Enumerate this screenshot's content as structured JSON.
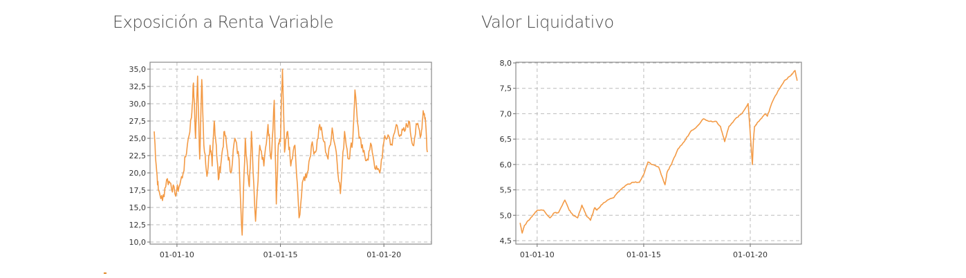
{
  "accent_color": "#f39a45",
  "chart_data": [
    {
      "type": "line",
      "title": "Exposición a Renta Variable",
      "xlabel": "",
      "ylabel": "",
      "ylim": [
        10.0,
        35.0
      ],
      "y_ticks": [
        "10,0",
        "12,5",
        "15,0",
        "17,5",
        "20,0",
        "22,5",
        "25,0",
        "27,5",
        "30,0",
        "32,5",
        "35,0"
      ],
      "x_ticks": [
        "01-01-10",
        "01-01-15",
        "01-01-20"
      ],
      "grid": true,
      "series": [
        {
          "color": "#f39a45",
          "x": [
            2008.9,
            2009.0,
            2009.1,
            2009.3,
            2009.5,
            2009.7,
            2009.9,
            2010.1,
            2010.3,
            2010.5,
            2010.7,
            2010.8,
            2010.9,
            2011.0,
            2011.1,
            2011.2,
            2011.3,
            2011.45,
            2011.6,
            2011.7,
            2011.8,
            2011.9,
            2012.0,
            2012.15,
            2012.3,
            2012.45,
            2012.6,
            2012.8,
            2013.0,
            2013.15,
            2013.3,
            2013.4,
            2013.5,
            2013.6,
            2013.8,
            2014.0,
            2014.2,
            2014.4,
            2014.55,
            2014.7,
            2014.8,
            2014.9,
            2015.0,
            2015.1,
            2015.2,
            2015.35,
            2015.5,
            2015.7,
            2015.9,
            2016.1,
            2016.3,
            2016.5,
            2016.7,
            2016.9,
            2017.1,
            2017.3,
            2017.5,
            2017.7,
            2017.9,
            2018.1,
            2018.3,
            2018.5,
            2018.6,
            2018.8,
            2019.0,
            2019.2,
            2019.4,
            2019.6,
            2019.8,
            2020.0,
            2020.2,
            2020.4,
            2020.6,
            2020.8,
            2021.0,
            2021.2,
            2021.4,
            2021.6,
            2021.8,
            2021.9,
            2022.0,
            2022.1
          ],
          "values": [
            26.0,
            21.0,
            17.5,
            16.0,
            19.0,
            18.5,
            17.0,
            18.0,
            20.0,
            24.0,
            28.0,
            33.0,
            25.0,
            34.0,
            22.0,
            33.5,
            24.0,
            19.5,
            24.0,
            21.0,
            27.5,
            24.0,
            19.0,
            22.0,
            26.0,
            23.0,
            20.0,
            25.0,
            22.0,
            11.0,
            25.0,
            21.0,
            18.0,
            26.0,
            13.0,
            24.0,
            21.0,
            27.0,
            22.0,
            30.5,
            15.5,
            24.0,
            24.5,
            35.0,
            23.0,
            26.0,
            21.0,
            24.0,
            13.5,
            19.0,
            20.0,
            24.0,
            23.0,
            27.0,
            24.5,
            22.0,
            26.5,
            23.0,
            17.0,
            26.0,
            22.0,
            25.0,
            32.0,
            25.0,
            23.0,
            22.0,
            24.0,
            20.5,
            20.0,
            24.5,
            25.5,
            24.0,
            27.0,
            25.5,
            26.0,
            27.5,
            24.0,
            27.0,
            25.5,
            29.0,
            28.0,
            23.0
          ]
        }
      ]
    },
    {
      "type": "line",
      "title": "Valor Liquidativo",
      "xlabel": "",
      "ylabel": "",
      "ylim": [
        4.5,
        8.0
      ],
      "y_ticks": [
        "4,5",
        "5,0",
        "5,5",
        "6,0",
        "6,5",
        "7,0",
        "7,5",
        "8,0"
      ],
      "x_ticks": [
        "01-01-10",
        "01-01-15",
        "01-01-20"
      ],
      "grid": true,
      "series": [
        {
          "color": "#f39a45",
          "x": [
            2009.2,
            2009.3,
            2009.4,
            2009.6,
            2009.8,
            2010.0,
            2010.3,
            2010.6,
            2010.8,
            2011.0,
            2011.3,
            2011.5,
            2011.7,
            2011.9,
            2012.1,
            2012.3,
            2012.5,
            2012.7,
            2012.8,
            2013.0,
            2013.3,
            2013.6,
            2013.9,
            2014.2,
            2014.5,
            2014.8,
            2015.0,
            2015.2,
            2015.4,
            2015.7,
            2016.0,
            2016.1,
            2016.3,
            2016.6,
            2016.9,
            2017.2,
            2017.5,
            2017.8,
            2018.1,
            2018.4,
            2018.6,
            2018.8,
            2019.0,
            2019.3,
            2019.6,
            2019.9,
            2020.1,
            2020.15,
            2020.2,
            2020.3,
            2020.5,
            2020.7,
            2020.8,
            2021.0,
            2021.3,
            2021.6,
            2021.9,
            2022.0,
            2022.1,
            2022.2
          ],
          "values": [
            4.85,
            4.65,
            4.8,
            4.9,
            5.0,
            5.1,
            5.1,
            4.95,
            5.05,
            5.05,
            5.3,
            5.1,
            5.0,
            4.95,
            5.2,
            5.0,
            4.9,
            5.15,
            5.1,
            5.2,
            5.3,
            5.35,
            5.5,
            5.6,
            5.65,
            5.65,
            5.8,
            6.05,
            6.0,
            5.95,
            5.6,
            5.85,
            6.0,
            6.3,
            6.45,
            6.65,
            6.75,
            6.9,
            6.85,
            6.85,
            6.75,
            6.45,
            6.75,
            6.9,
            7.0,
            7.2,
            6.0,
            6.5,
            6.75,
            6.8,
            6.9,
            7.0,
            6.95,
            7.2,
            7.45,
            7.65,
            7.75,
            7.8,
            7.85,
            7.65
          ]
        }
      ]
    }
  ]
}
